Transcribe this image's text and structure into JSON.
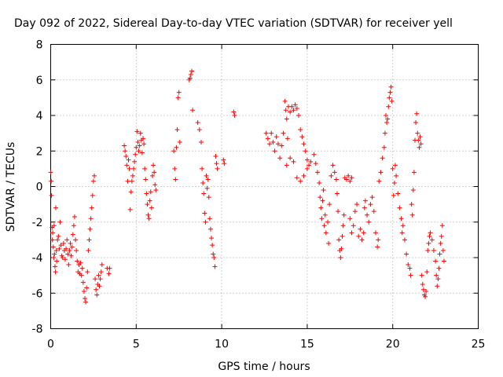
{
  "chart_data": {
    "type": "scatter",
    "title": "Day 092 of 2022, Sidereal Day-to-day VTEC variation (SDTVAR) for receiver yell",
    "xlabel": "GPS time / hours",
    "ylabel": "SDTVAR / TECUs",
    "xlim": [
      0,
      25
    ],
    "ylim": [
      -8,
      8
    ],
    "xticks": [
      0,
      5,
      10,
      15,
      20,
      25
    ],
    "yticks": [
      -8,
      -6,
      -4,
      -2,
      0,
      2,
      4,
      6,
      8
    ],
    "grid": true,
    "marker": "+",
    "color": "#ff0000",
    "series": [
      {
        "name": "SDTVAR",
        "points": [
          [
            0.0,
            0.8
          ],
          [
            0.03,
            0.3
          ],
          [
            0.05,
            -0.5
          ],
          [
            0.08,
            -2.3
          ],
          [
            0.1,
            -3.0
          ],
          [
            0.12,
            -2.6
          ],
          [
            0.15,
            -3.4
          ],
          [
            0.18,
            -4.0
          ],
          [
            0.2,
            -2.2
          ],
          [
            0.22,
            -3.8
          ],
          [
            0.25,
            -4.5
          ],
          [
            0.28,
            -4.8
          ],
          [
            0.3,
            -1.2
          ],
          [
            0.33,
            -3.6
          ],
          [
            0.35,
            -4.2
          ],
          [
            0.4,
            -3.0
          ],
          [
            0.45,
            -2.8
          ],
          [
            0.5,
            -3.5
          ],
          [
            0.55,
            -2.0
          ],
          [
            0.6,
            -3.3
          ],
          [
            0.65,
            -3.9
          ],
          [
            0.7,
            -4.0
          ],
          [
            0.75,
            -3.2
          ],
          [
            0.8,
            -3.6
          ],
          [
            0.85,
            -4.1
          ],
          [
            0.9,
            -3.5
          ],
          [
            0.95,
            -3.0
          ],
          [
            1.0,
            -3.8
          ],
          [
            1.05,
            -4.4
          ],
          [
            1.1,
            -3.6
          ],
          [
            1.15,
            -3.2
          ],
          [
            1.2,
            -3.9
          ],
          [
            1.25,
            -3.4
          ],
          [
            1.3,
            -2.7
          ],
          [
            1.35,
            -2.2
          ],
          [
            1.4,
            -1.7
          ],
          [
            1.45,
            -3.0
          ],
          [
            1.5,
            -3.6
          ],
          [
            1.55,
            -4.2
          ],
          [
            1.6,
            -4.8
          ],
          [
            1.65,
            -4.4
          ],
          [
            1.7,
            -4.9
          ],
          [
            1.75,
            -4.3
          ],
          [
            1.8,
            -5.0
          ],
          [
            1.85,
            -4.6
          ],
          [
            1.9,
            -5.4
          ],
          [
            1.95,
            -5.9
          ],
          [
            2.0,
            -6.3
          ],
          [
            2.05,
            -6.5
          ],
          [
            2.1,
            -5.7
          ],
          [
            2.15,
            -4.8
          ],
          [
            2.2,
            -3.6
          ],
          [
            2.25,
            -3.0
          ],
          [
            2.3,
            -2.4
          ],
          [
            2.35,
            -1.8
          ],
          [
            2.4,
            -1.2
          ],
          [
            2.45,
            -0.5
          ],
          [
            2.5,
            0.3
          ],
          [
            2.55,
            0.6
          ],
          [
            2.6,
            -5.2
          ],
          [
            2.65,
            -5.8
          ],
          [
            2.7,
            -6.1
          ],
          [
            2.75,
            -5.5
          ],
          [
            2.8,
            -5.0
          ],
          [
            2.85,
            -5.6
          ],
          [
            2.9,
            -5.2
          ],
          [
            2.95,
            -4.8
          ],
          [
            3.0,
            -4.4
          ],
          [
            3.3,
            -4.6
          ],
          [
            3.4,
            -4.9
          ],
          [
            3.45,
            -4.6
          ],
          [
            4.3,
            2.3
          ],
          [
            4.35,
            2.0
          ],
          [
            4.4,
            1.7
          ],
          [
            4.45,
            1.2
          ],
          [
            4.5,
            0.3
          ],
          [
            4.55,
            1.5
          ],
          [
            4.6,
            1.0
          ],
          [
            4.65,
            -1.3
          ],
          [
            4.7,
            -0.3
          ],
          [
            4.75,
            0.3
          ],
          [
            4.8,
            0.6
          ],
          [
            4.85,
            1.0
          ],
          [
            4.9,
            1.4
          ],
          [
            4.95,
            1.8
          ],
          [
            5.0,
            2.2
          ],
          [
            5.05,
            3.1
          ],
          [
            5.1,
            2.5
          ],
          [
            5.15,
            2.0
          ],
          [
            5.2,
            2.3
          ],
          [
            5.25,
            3.0
          ],
          [
            5.3,
            2.6
          ],
          [
            5.35,
            1.9
          ],
          [
            5.4,
            2.7
          ],
          [
            5.45,
            2.4
          ],
          [
            5.5,
            1.0
          ],
          [
            5.55,
            0.4
          ],
          [
            5.6,
            -0.4
          ],
          [
            5.65,
            -1.0
          ],
          [
            5.7,
            -1.6
          ],
          [
            5.75,
            -1.8
          ],
          [
            5.8,
            -0.8
          ],
          [
            5.85,
            -0.3
          ],
          [
            5.9,
            -1.2
          ],
          [
            5.95,
            0.6
          ],
          [
            6.0,
            1.2
          ],
          [
            6.05,
            0.8
          ],
          [
            6.1,
            0.1
          ],
          [
            6.15,
            -0.2
          ],
          [
            7.2,
            2.0
          ],
          [
            7.25,
            1.0
          ],
          [
            7.3,
            0.4
          ],
          [
            7.35,
            2.2
          ],
          [
            7.4,
            3.2
          ],
          [
            7.45,
            5.0
          ],
          [
            7.5,
            5.3
          ],
          [
            7.55,
            2.5
          ],
          [
            8.1,
            6.0
          ],
          [
            8.15,
            6.1
          ],
          [
            8.2,
            6.3
          ],
          [
            8.25,
            6.5
          ],
          [
            8.3,
            4.3
          ],
          [
            8.6,
            3.6
          ],
          [
            8.7,
            3.2
          ],
          [
            8.8,
            2.5
          ],
          [
            8.85,
            1.0
          ],
          [
            8.9,
            0.2
          ],
          [
            8.95,
            -0.4
          ],
          [
            9.0,
            -1.5
          ],
          [
            9.05,
            -2.0
          ],
          [
            9.1,
            0.6
          ],
          [
            9.15,
            -0.1
          ],
          [
            9.2,
            0.4
          ],
          [
            9.25,
            -0.6
          ],
          [
            9.3,
            -1.8
          ],
          [
            9.35,
            -2.4
          ],
          [
            9.4,
            -2.9
          ],
          [
            9.45,
            -3.3
          ],
          [
            9.5,
            -3.8
          ],
          [
            9.55,
            -4.0
          ],
          [
            9.6,
            -4.5
          ],
          [
            9.65,
            1.7
          ],
          [
            9.7,
            1.3
          ],
          [
            9.75,
            1.0
          ],
          [
            10.1,
            1.5
          ],
          [
            10.15,
            1.3
          ],
          [
            10.7,
            4.2
          ],
          [
            10.75,
            4.0
          ],
          [
            12.6,
            3.0
          ],
          [
            12.7,
            2.7
          ],
          [
            12.8,
            2.4
          ],
          [
            12.9,
            3.0
          ],
          [
            13.0,
            2.5
          ],
          [
            13.1,
            2.0
          ],
          [
            13.2,
            2.8
          ],
          [
            13.3,
            2.4
          ],
          [
            13.4,
            1.6
          ],
          [
            13.5,
            2.3
          ],
          [
            13.6,
            3.0
          ],
          [
            13.7,
            4.8
          ],
          [
            13.75,
            4.3
          ],
          [
            13.8,
            3.8
          ],
          [
            13.85,
            2.7
          ],
          [
            13.9,
            4.5
          ],
          [
            14.0,
            4.2
          ],
          [
            14.1,
            4.5
          ],
          [
            14.2,
            4.3
          ],
          [
            14.3,
            4.6
          ],
          [
            14.4,
            4.4
          ],
          [
            14.5,
            4.0
          ],
          [
            14.6,
            3.2
          ],
          [
            14.7,
            2.8
          ],
          [
            14.8,
            2.4
          ],
          [
            14.9,
            2.0
          ],
          [
            15.0,
            1.5
          ],
          [
            15.1,
            1.2
          ],
          [
            13.8,
            1.2
          ],
          [
            14.0,
            1.6
          ],
          [
            14.2,
            1.4
          ],
          [
            14.4,
            0.5
          ],
          [
            14.6,
            0.3
          ],
          [
            14.8,
            0.6
          ],
          [
            15.0,
            1.0
          ],
          [
            15.2,
            1.4
          ],
          [
            15.4,
            1.8
          ],
          [
            15.5,
            1.3
          ],
          [
            15.6,
            0.8
          ],
          [
            15.7,
            0.2
          ],
          [
            15.75,
            -0.6
          ],
          [
            15.8,
            -1.2
          ],
          [
            15.85,
            -1.8
          ],
          [
            15.9,
            -0.8
          ],
          [
            15.95,
            -0.2
          ],
          [
            16.0,
            -2.2
          ],
          [
            16.05,
            -1.6
          ],
          [
            16.1,
            -2.6
          ],
          [
            16.2,
            -2.0
          ],
          [
            16.25,
            -3.2
          ],
          [
            16.3,
            -1.0
          ],
          [
            16.4,
            0.6
          ],
          [
            16.5,
            1.2
          ],
          [
            16.6,
            0.8
          ],
          [
            16.7,
            0.4
          ],
          [
            16.75,
            -0.4
          ],
          [
            16.8,
            -1.4
          ],
          [
            16.85,
            -3.0
          ],
          [
            16.9,
            -3.6
          ],
          [
            16.95,
            -4.0
          ],
          [
            17.0,
            -3.5
          ],
          [
            17.05,
            -2.8
          ],
          [
            17.1,
            -2.2
          ],
          [
            17.15,
            -1.6
          ],
          [
            17.2,
            0.5
          ],
          [
            17.3,
            0.4
          ],
          [
            17.4,
            0.6
          ],
          [
            17.5,
            0.3
          ],
          [
            17.6,
            0.5
          ],
          [
            17.5,
            -1.8
          ],
          [
            17.6,
            -2.6
          ],
          [
            17.7,
            -2.2
          ],
          [
            17.8,
            -1.4
          ],
          [
            17.9,
            -1.0
          ],
          [
            18.0,
            -2.8
          ],
          [
            18.1,
            -2.4
          ],
          [
            18.2,
            -3.0
          ],
          [
            18.3,
            -2.6
          ],
          [
            18.35,
            -1.2
          ],
          [
            18.4,
            -0.8
          ],
          [
            18.5,
            -1.6
          ],
          [
            18.6,
            -2.0
          ],
          [
            18.7,
            -1.0
          ],
          [
            18.8,
            -0.6
          ],
          [
            18.9,
            -1.4
          ],
          [
            19.0,
            -2.6
          ],
          [
            19.1,
            -3.4
          ],
          [
            19.15,
            -3.0
          ],
          [
            19.2,
            0.3
          ],
          [
            19.3,
            0.8
          ],
          [
            19.4,
            1.6
          ],
          [
            19.5,
            2.2
          ],
          [
            19.55,
            3.0
          ],
          [
            19.6,
            4.0
          ],
          [
            19.65,
            3.6
          ],
          [
            19.7,
            3.8
          ],
          [
            19.75,
            4.5
          ],
          [
            19.8,
            5.0
          ],
          [
            19.85,
            5.3
          ],
          [
            19.9,
            5.6
          ],
          [
            19.95,
            4.8
          ],
          [
            20.0,
            1.0
          ],
          [
            20.05,
            -0.5
          ],
          [
            20.1,
            0.2
          ],
          [
            20.15,
            1.2
          ],
          [
            20.2,
            0.6
          ],
          [
            20.3,
            -0.4
          ],
          [
            20.4,
            -1.2
          ],
          [
            20.5,
            -1.8
          ],
          [
            20.55,
            -2.6
          ],
          [
            20.6,
            -2.2
          ],
          [
            20.7,
            -3.0
          ],
          [
            20.8,
            -3.8
          ],
          [
            20.9,
            -4.4
          ],
          [
            21.0,
            -4.6
          ],
          [
            21.05,
            -5.0
          ],
          [
            21.1,
            -1.0
          ],
          [
            21.15,
            -1.6
          ],
          [
            21.2,
            -0.2
          ],
          [
            21.25,
            0.8
          ],
          [
            21.3,
            2.6
          ],
          [
            21.35,
            3.6
          ],
          [
            21.4,
            4.1
          ],
          [
            21.45,
            3.0
          ],
          [
            21.5,
            2.6
          ],
          [
            21.55,
            2.2
          ],
          [
            21.6,
            2.8
          ],
          [
            21.65,
            2.4
          ],
          [
            21.7,
            -5.0
          ],
          [
            21.75,
            -5.5
          ],
          [
            21.8,
            -5.8
          ],
          [
            21.85,
            -6.1
          ],
          [
            21.9,
            -6.2
          ],
          [
            21.95,
            -5.9
          ],
          [
            22.0,
            -4.8
          ],
          [
            22.05,
            -3.6
          ],
          [
            22.1,
            -3.2
          ],
          [
            22.15,
            -2.8
          ],
          [
            22.2,
            -2.6
          ],
          [
            22.3,
            -3.0
          ],
          [
            22.4,
            -3.6
          ],
          [
            22.5,
            -4.2
          ],
          [
            22.55,
            -5.0
          ],
          [
            22.6,
            -5.6
          ],
          [
            22.65,
            -5.2
          ],
          [
            22.7,
            -4.6
          ],
          [
            22.75,
            -3.8
          ],
          [
            22.8,
            -3.2
          ],
          [
            22.85,
            -2.8
          ],
          [
            22.9,
            -2.2
          ],
          [
            22.95,
            -3.6
          ],
          [
            23.0,
            -4.2
          ]
        ]
      }
    ]
  }
}
